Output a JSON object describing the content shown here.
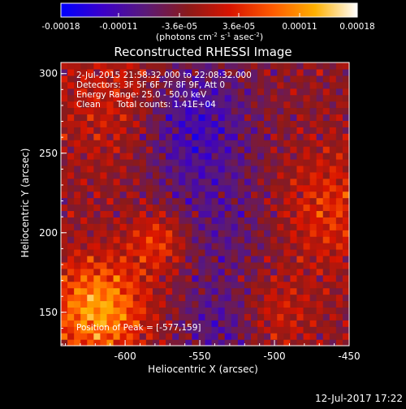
{
  "colorbar": {
    "ticks": [
      {
        "value": -0.00018,
        "label": "-0.00018"
      },
      {
        "value": -0.00011,
        "label": "-0.00011"
      },
      {
        "value": -3.6e-05,
        "label": "-3.6e-05"
      },
      {
        "value": 3.6e-05,
        "label": "3.6e-05"
      },
      {
        "value": 0.00011,
        "label": "0.00011"
      },
      {
        "value": 0.00018,
        "label": "0.00018"
      }
    ],
    "range": [
      -0.00018,
      0.00018
    ],
    "colors": [
      "#0000ff",
      "#3c00c8",
      "#5a1a78",
      "#8b1a1a",
      "#d81400",
      "#ff5a00",
      "#ffb000",
      "#ffffff"
    ],
    "units_main": "(photons cm",
    "units_sup1": "-2",
    "units_mid": " s",
    "units_sup2": "-1",
    "units_tail": " asec",
    "units_sup3": "-2",
    "units_close": ")"
  },
  "title": "Reconstructed RHESSI Image",
  "annotations": [
    "2-Jul-2015 21:58:32.000 to 22:08:32.000",
    "Detectors: 3F 5F 6F 7F 8F 9F, Att 0",
    "Energy Range: 25.0 - 50.0 keV",
    "Clean      Total counts: 1.41E+04"
  ],
  "peak_text": "Position of Peak = [-577,159]",
  "footer_date": "12-Jul-2017 17:22",
  "chart_data": {
    "type": "heatmap",
    "title": "Reconstructed RHESSI Image",
    "xlabel": "Heliocentric X (arcsec)",
    "ylabel": "Heliocentric Y (arcsec)",
    "xlim": [
      -643,
      -450
    ],
    "ylim": [
      129,
      307
    ],
    "x_ticks": [
      -600,
      -550,
      -500,
      -450
    ],
    "x_tick_labels": [
      "-600",
      "-550",
      "-500",
      "-450"
    ],
    "y_ticks": [
      150,
      200,
      250,
      300
    ],
    "y_tick_labels": [
      "150",
      "200",
      "250",
      "300"
    ],
    "peak": {
      "x": -577,
      "y": 159
    },
    "value_range": [
      -0.00018,
      0.00018
    ],
    "colormap": "blue-purple-red-yellow-white"
  }
}
